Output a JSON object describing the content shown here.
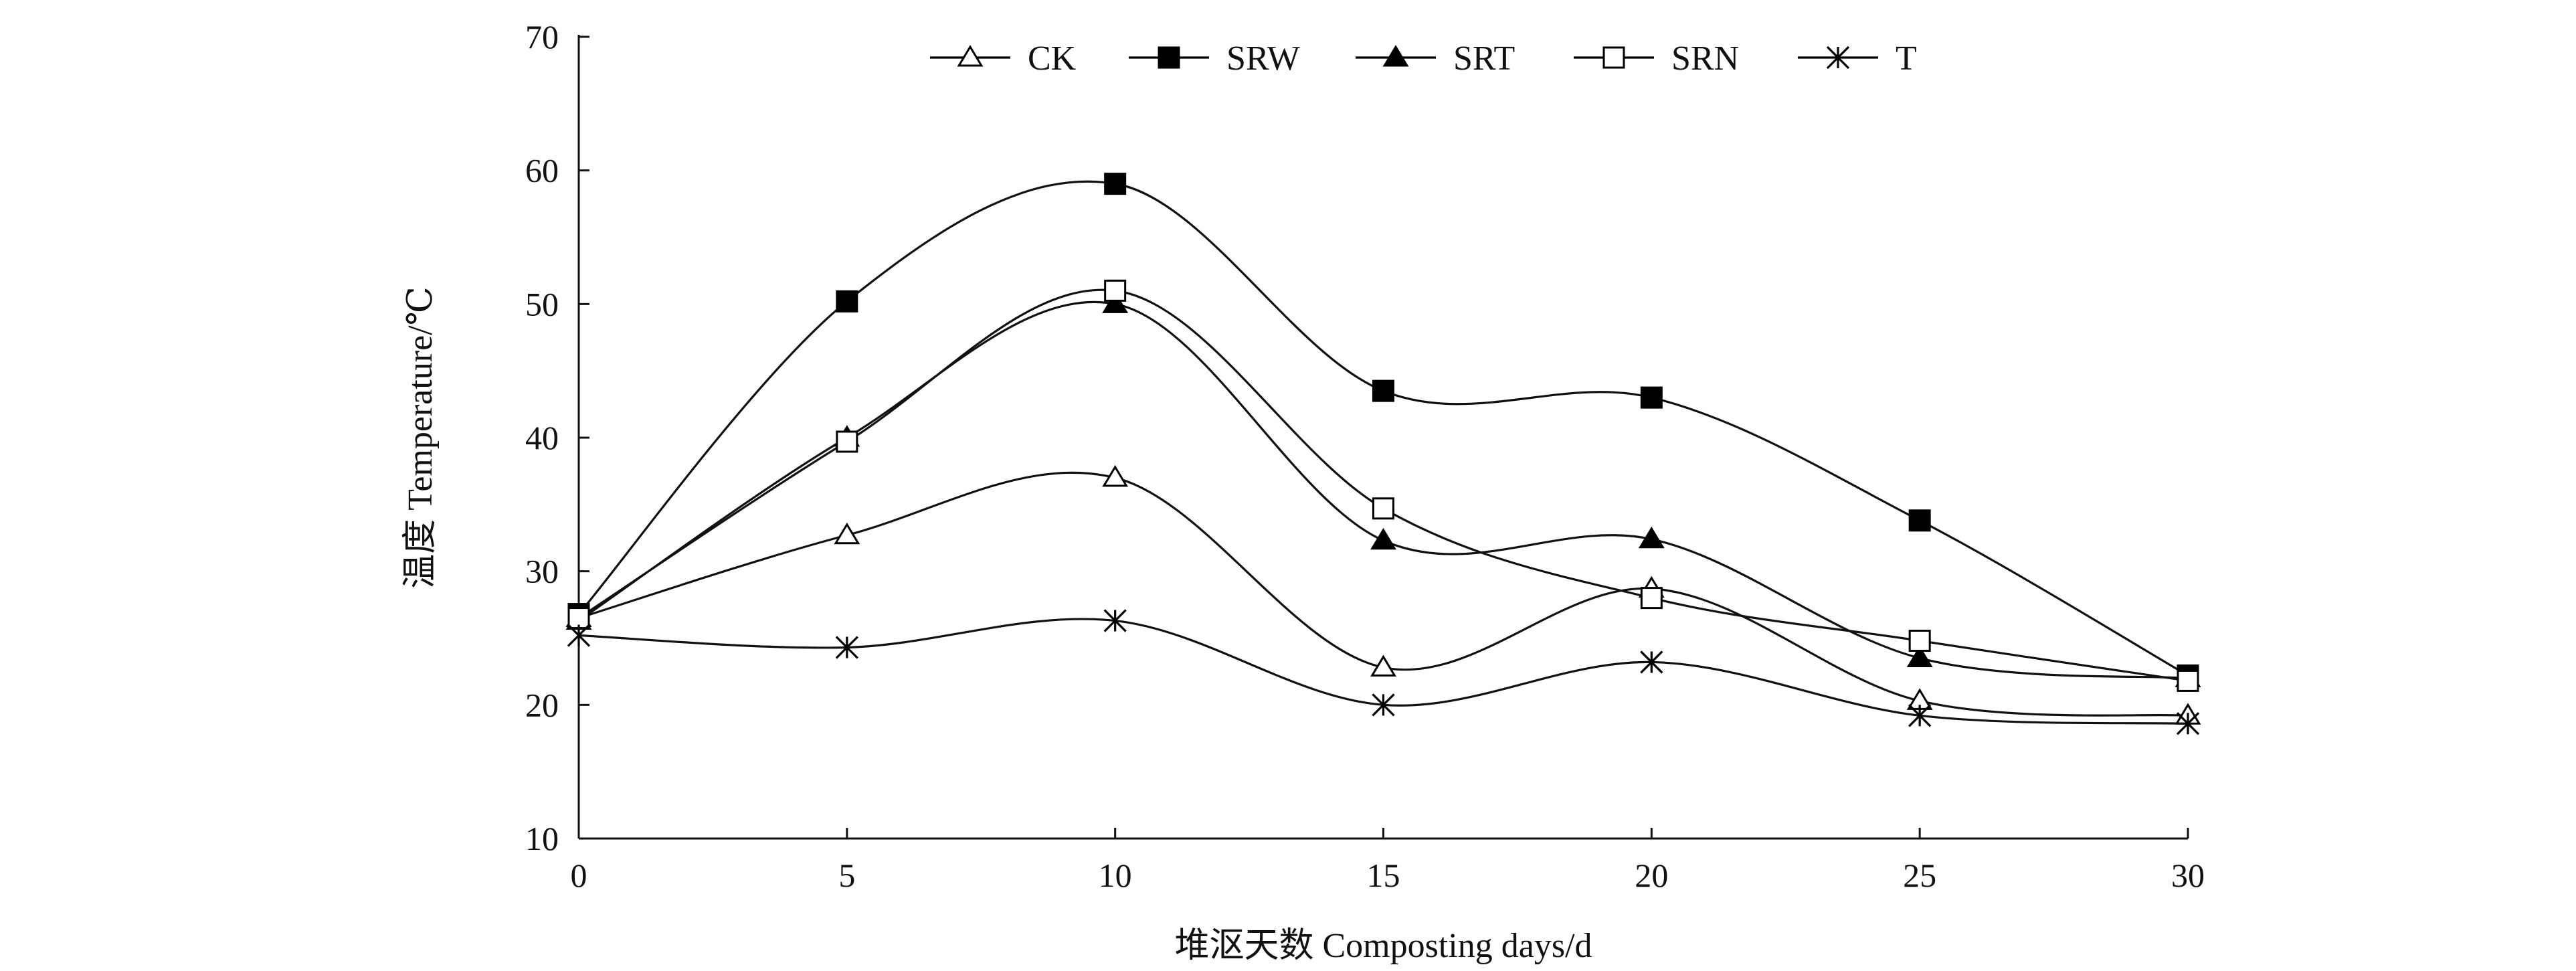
{
  "chart_data": {
    "type": "line",
    "title": "",
    "xlabel": "堆沤天数 Composting days/d",
    "ylabel": "温度 Temperature/℃",
    "x": [
      0,
      5,
      10,
      15,
      20,
      25,
      30
    ],
    "xlim": [
      0,
      30
    ],
    "ylim": [
      10,
      70
    ],
    "xticks": [
      0,
      5,
      10,
      15,
      20,
      25,
      30
    ],
    "yticks": [
      10,
      20,
      30,
      40,
      50,
      60,
      70
    ],
    "grid": false,
    "smooth": true,
    "legend_position": "top",
    "series": [
      {
        "name": "CK",
        "marker": "open-triangle",
        "values": [
          26.5,
          32.7,
          37.0,
          22.8,
          28.7,
          20.3,
          19.2
        ]
      },
      {
        "name": "SRW",
        "marker": "filled-square",
        "values": [
          26.8,
          50.2,
          59.0,
          43.5,
          43.0,
          33.8,
          22.2
        ]
      },
      {
        "name": "SRT",
        "marker": "filled-triangle",
        "values": [
          26.3,
          40.0,
          50.0,
          32.3,
          32.4,
          23.5,
          22.0
        ]
      },
      {
        "name": "SRN",
        "marker": "open-square",
        "values": [
          26.5,
          39.7,
          51.0,
          34.7,
          28.0,
          24.8,
          21.8
        ]
      },
      {
        "name": "T",
        "marker": "star",
        "values": [
          25.2,
          24.3,
          26.3,
          20.0,
          23.2,
          19.2,
          18.6
        ]
      }
    ]
  }
}
